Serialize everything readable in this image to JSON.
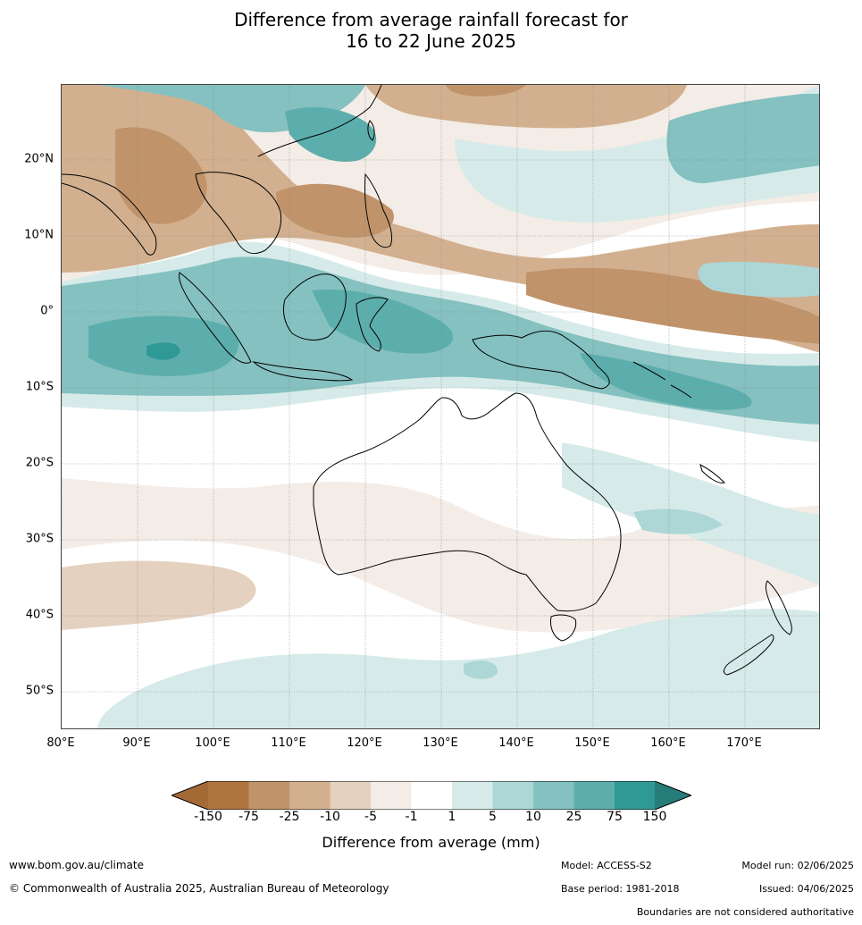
{
  "title_line1": "Difference from average rainfall forecast for",
  "title_line2": "16 to 22 June 2025",
  "lat_labels": [
    "20°N",
    "10°N",
    "0°",
    "10°S",
    "20°S",
    "30°S",
    "40°S",
    "50°S"
  ],
  "lon_labels": [
    "80°E",
    "90°E",
    "100°E",
    "110°E",
    "120°E",
    "130°E",
    "140°E",
    "150°E",
    "160°E",
    "170°E"
  ],
  "colorbar": {
    "labels": [
      "-150",
      "-75",
      "-25",
      "-10",
      "-5",
      "-1",
      "1",
      "5",
      "10",
      "25",
      "75",
      "150"
    ],
    "colors": [
      "#a46a35",
      "#b07440",
      "#c0936a",
      "#d2b08f",
      "#e4d1bf",
      "#f4ece6",
      "#ffffff",
      "#d6ebe9",
      "#acd7d6",
      "#84c1c0",
      "#5caeac",
      "#2f9995",
      "#267c78"
    ],
    "title": "Difference from average (mm)"
  },
  "footer": {
    "website": "www.bom.gov.au/climate",
    "copyright": "© Commonwealth of Australia 2025, Australian Bureau of Meteorology",
    "model": "Model: ACCESS-S2",
    "base_period": "Base period: 1981-2018",
    "model_run": "Model run: 02/06/2025",
    "issued": "Issued: 04/06/2025",
    "boundaries": "Boundaries are not considered authoritative"
  }
}
